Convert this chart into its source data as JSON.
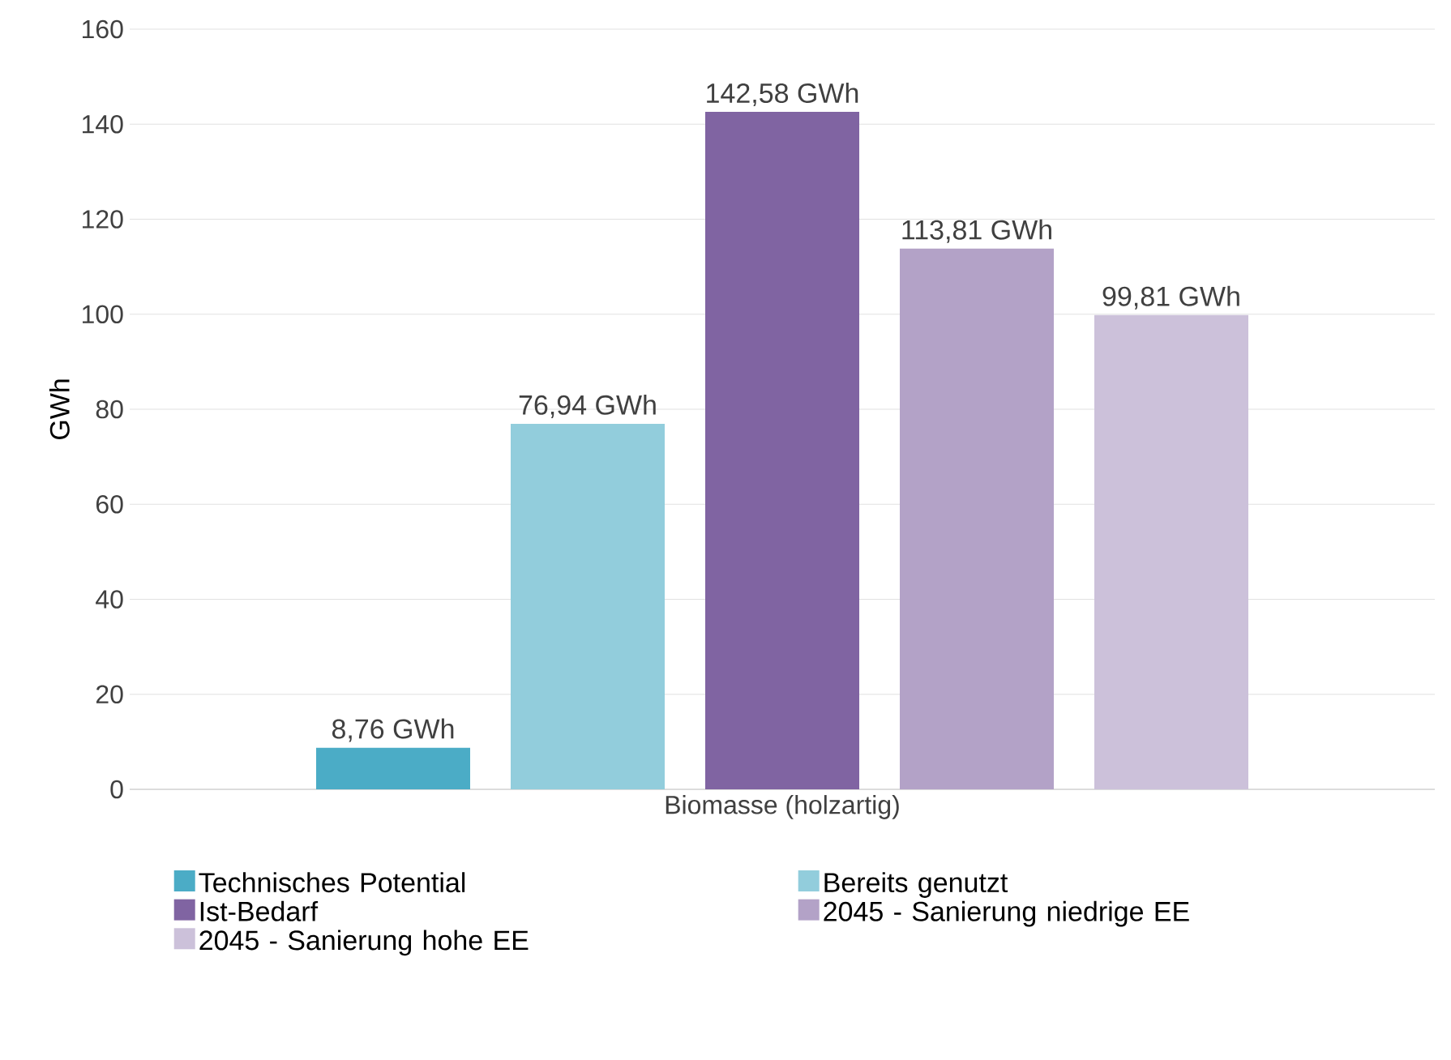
{
  "chart_data": {
    "type": "bar",
    "categories": [
      "Biomasse (holzartig)"
    ],
    "ylabel": "GWh",
    "ylim": [
      0,
      160
    ],
    "yticks": [
      0,
      20,
      40,
      60,
      80,
      100,
      120,
      140,
      160
    ],
    "grid": "y",
    "legend": "bottom",
    "series": [
      {
        "name": "Technisches Potential",
        "color": "#4bacc6",
        "values": [
          8.76
        ],
        "value_labels": [
          "8,76 GWh"
        ]
      },
      {
        "name": "Bereits genutzt",
        "color": "#92cddc",
        "values": [
          76.94
        ],
        "value_labels": [
          "76,94 GWh"
        ]
      },
      {
        "name": "Ist-Bedarf",
        "color": "#8064a2",
        "values": [
          142.58
        ],
        "value_labels": [
          "142,58 GWh"
        ]
      },
      {
        "name": "2045 - Sanierung niedrige EE",
        "color": "#b3a2c7",
        "values": [
          113.81
        ],
        "value_labels": [
          "113,81 GWh"
        ]
      },
      {
        "name": "2045 - Sanierung hohe EE",
        "color": "#ccc1da",
        "values": [
          99.81
        ],
        "value_labels": [
          "99,81 GWh"
        ]
      }
    ]
  }
}
